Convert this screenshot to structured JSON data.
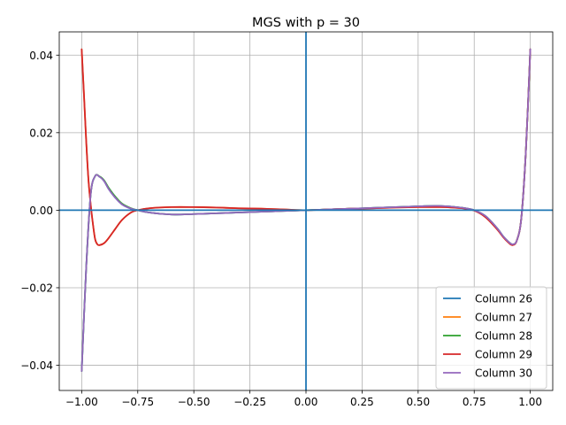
{
  "chart_data": {
    "type": "line",
    "title": "MGS with p = 30",
    "xlabel": "",
    "ylabel": "",
    "xlim": [
      -1.1,
      1.1
    ],
    "ylim": [
      -0.0465,
      0.046
    ],
    "xticks": [
      -1.0,
      -0.75,
      -0.5,
      -0.25,
      0.0,
      0.25,
      0.5,
      0.75,
      1.0
    ],
    "xtick_labels": [
      "−1.00",
      "−0.75",
      "−0.50",
      "−0.25",
      "0.00",
      "0.25",
      "0.50",
      "0.75",
      "1.00"
    ],
    "yticks": [
      -0.04,
      -0.02,
      0.0,
      0.02,
      0.04
    ],
    "ytick_labels": [
      "−0.04",
      "−0.02",
      "0.00",
      "0.02",
      "0.04"
    ],
    "grid": true,
    "legend_position": "lower-right",
    "axhline": 0,
    "axvline": 0,
    "series": [
      {
        "name": "Column 26",
        "color": "#1f77b4",
        "x": [
          -1.0,
          -0.98,
          -0.96,
          -0.94,
          -0.92,
          -0.9,
          -0.88,
          -0.85,
          -0.82,
          -0.78,
          -0.75,
          -0.7,
          -0.6,
          -0.5,
          -0.4,
          -0.3,
          -0.2,
          -0.1,
          0.0,
          0.1,
          0.2,
          0.3,
          0.4,
          0.5,
          0.6,
          0.7,
          0.75,
          0.8,
          0.85,
          0.88,
          0.9,
          0.92,
          0.94,
          0.96,
          0.98,
          1.0
        ],
        "y": [
          -0.0415,
          -0.015,
          0.004,
          0.0088,
          0.0086,
          0.0075,
          0.0055,
          0.0032,
          0.0015,
          0.0004,
          0.0,
          -0.0006,
          -0.0011,
          -0.001,
          -0.0008,
          -0.0006,
          -0.0004,
          -0.0002,
          0.0,
          0.0002,
          0.0004,
          0.0006,
          0.0008,
          0.001,
          0.0011,
          0.0006,
          0.0,
          -0.0015,
          -0.0045,
          -0.0068,
          -0.008,
          -0.0088,
          -0.0078,
          -0.002,
          0.015,
          0.0415
        ]
      },
      {
        "name": "Column 27",
        "color": "#ff7f0e",
        "x": [
          -1.0,
          -0.99,
          -0.98,
          -0.97,
          -0.96,
          -0.95,
          -0.94,
          -0.93,
          -0.92,
          -0.9,
          -0.88,
          -0.85,
          -0.82,
          -0.78,
          -0.75,
          -0.7,
          -0.6,
          -0.5,
          -0.4,
          -0.3,
          -0.2,
          -0.1,
          0.0,
          0.1,
          0.2,
          0.3,
          0.4,
          0.5,
          0.6,
          0.7,
          0.75,
          0.8,
          0.85,
          0.88,
          0.9,
          0.92,
          0.94,
          0.96,
          0.98,
          1.0
        ],
        "y": [
          0.0415,
          0.03,
          0.018,
          0.008,
          0.0015,
          -0.0035,
          -0.0075,
          -0.0088,
          -0.009,
          -0.0085,
          -0.0072,
          -0.0048,
          -0.0025,
          -0.0006,
          0.0,
          0.0005,
          0.0008,
          0.0008,
          0.0007,
          0.0005,
          0.0004,
          0.0002,
          0.0,
          0.0002,
          0.0004,
          0.0005,
          0.0007,
          0.0008,
          0.0008,
          0.0005,
          -0.0001,
          -0.0018,
          -0.0048,
          -0.007,
          -0.0082,
          -0.009,
          -0.0078,
          -0.002,
          0.015,
          0.0415
        ]
      },
      {
        "name": "Column 28",
        "color": "#2ca02c",
        "x": [
          -1.0,
          -0.98,
          -0.96,
          -0.94,
          -0.92,
          -0.9,
          -0.88,
          -0.85,
          -0.82,
          -0.78,
          -0.75,
          -0.7,
          -0.6,
          -0.5,
          -0.4,
          -0.3,
          -0.2,
          -0.1,
          0.0,
          0.1,
          0.2,
          0.3,
          0.4,
          0.5,
          0.6,
          0.7,
          0.75,
          0.8,
          0.85,
          0.88,
          0.9,
          0.92,
          0.94,
          0.96,
          0.98,
          1.0
        ],
        "y": [
          -0.0415,
          -0.015,
          0.004,
          0.0088,
          0.0087,
          0.0077,
          0.0058,
          0.0035,
          0.0017,
          0.0005,
          0.0,
          -0.0006,
          -0.0011,
          -0.001,
          -0.0008,
          -0.0006,
          -0.0004,
          -0.0002,
          0.0,
          0.0002,
          0.0004,
          0.0006,
          0.0008,
          0.001,
          0.0011,
          0.0006,
          0.0,
          -0.0015,
          -0.0045,
          -0.0068,
          -0.008,
          -0.0088,
          -0.0078,
          -0.002,
          0.015,
          0.0415
        ]
      },
      {
        "name": "Column 29",
        "color": "#d62728",
        "x": [
          -1.0,
          -0.99,
          -0.98,
          -0.97,
          -0.96,
          -0.95,
          -0.94,
          -0.93,
          -0.92,
          -0.9,
          -0.88,
          -0.85,
          -0.82,
          -0.78,
          -0.75,
          -0.7,
          -0.6,
          -0.5,
          -0.4,
          -0.3,
          -0.2,
          -0.1,
          0.0,
          0.1,
          0.2,
          0.3,
          0.4,
          0.5,
          0.6,
          0.7,
          0.75,
          0.8,
          0.85,
          0.88,
          0.9,
          0.92,
          0.94,
          0.96,
          0.98,
          1.0
        ],
        "y": [
          0.0415,
          0.03,
          0.018,
          0.008,
          0.0015,
          -0.0035,
          -0.0075,
          -0.0088,
          -0.009,
          -0.0085,
          -0.0072,
          -0.0048,
          -0.0025,
          -0.0006,
          0.0,
          0.0005,
          0.0008,
          0.0008,
          0.0007,
          0.0005,
          0.0004,
          0.0002,
          0.0,
          0.0002,
          0.0004,
          0.0005,
          0.0007,
          0.0008,
          0.0008,
          0.0005,
          -0.0001,
          -0.0018,
          -0.0048,
          -0.007,
          -0.0082,
          -0.009,
          -0.0078,
          -0.002,
          0.015,
          0.0415
        ]
      },
      {
        "name": "Column 30",
        "color": "#9467bd",
        "x": [
          -1.0,
          -0.98,
          -0.96,
          -0.94,
          -0.92,
          -0.9,
          -0.88,
          -0.85,
          -0.82,
          -0.78,
          -0.75,
          -0.7,
          -0.6,
          -0.5,
          -0.4,
          -0.3,
          -0.2,
          -0.1,
          0.0,
          0.1,
          0.2,
          0.3,
          0.4,
          0.5,
          0.6,
          0.7,
          0.75,
          0.8,
          0.85,
          0.88,
          0.9,
          0.92,
          0.94,
          0.96,
          0.98,
          1.0
        ],
        "y": [
          -0.0415,
          -0.015,
          0.004,
          0.0088,
          0.0086,
          0.0075,
          0.0055,
          0.0032,
          0.0015,
          0.0004,
          0.0,
          -0.0006,
          -0.0011,
          -0.001,
          -0.0008,
          -0.0006,
          -0.0004,
          -0.0002,
          0.0,
          0.0002,
          0.0004,
          0.0006,
          0.0008,
          0.001,
          0.0011,
          0.0006,
          0.0,
          -0.0015,
          -0.0045,
          -0.0068,
          -0.008,
          -0.0088,
          -0.0078,
          -0.002,
          0.015,
          0.0415
        ]
      }
    ]
  }
}
